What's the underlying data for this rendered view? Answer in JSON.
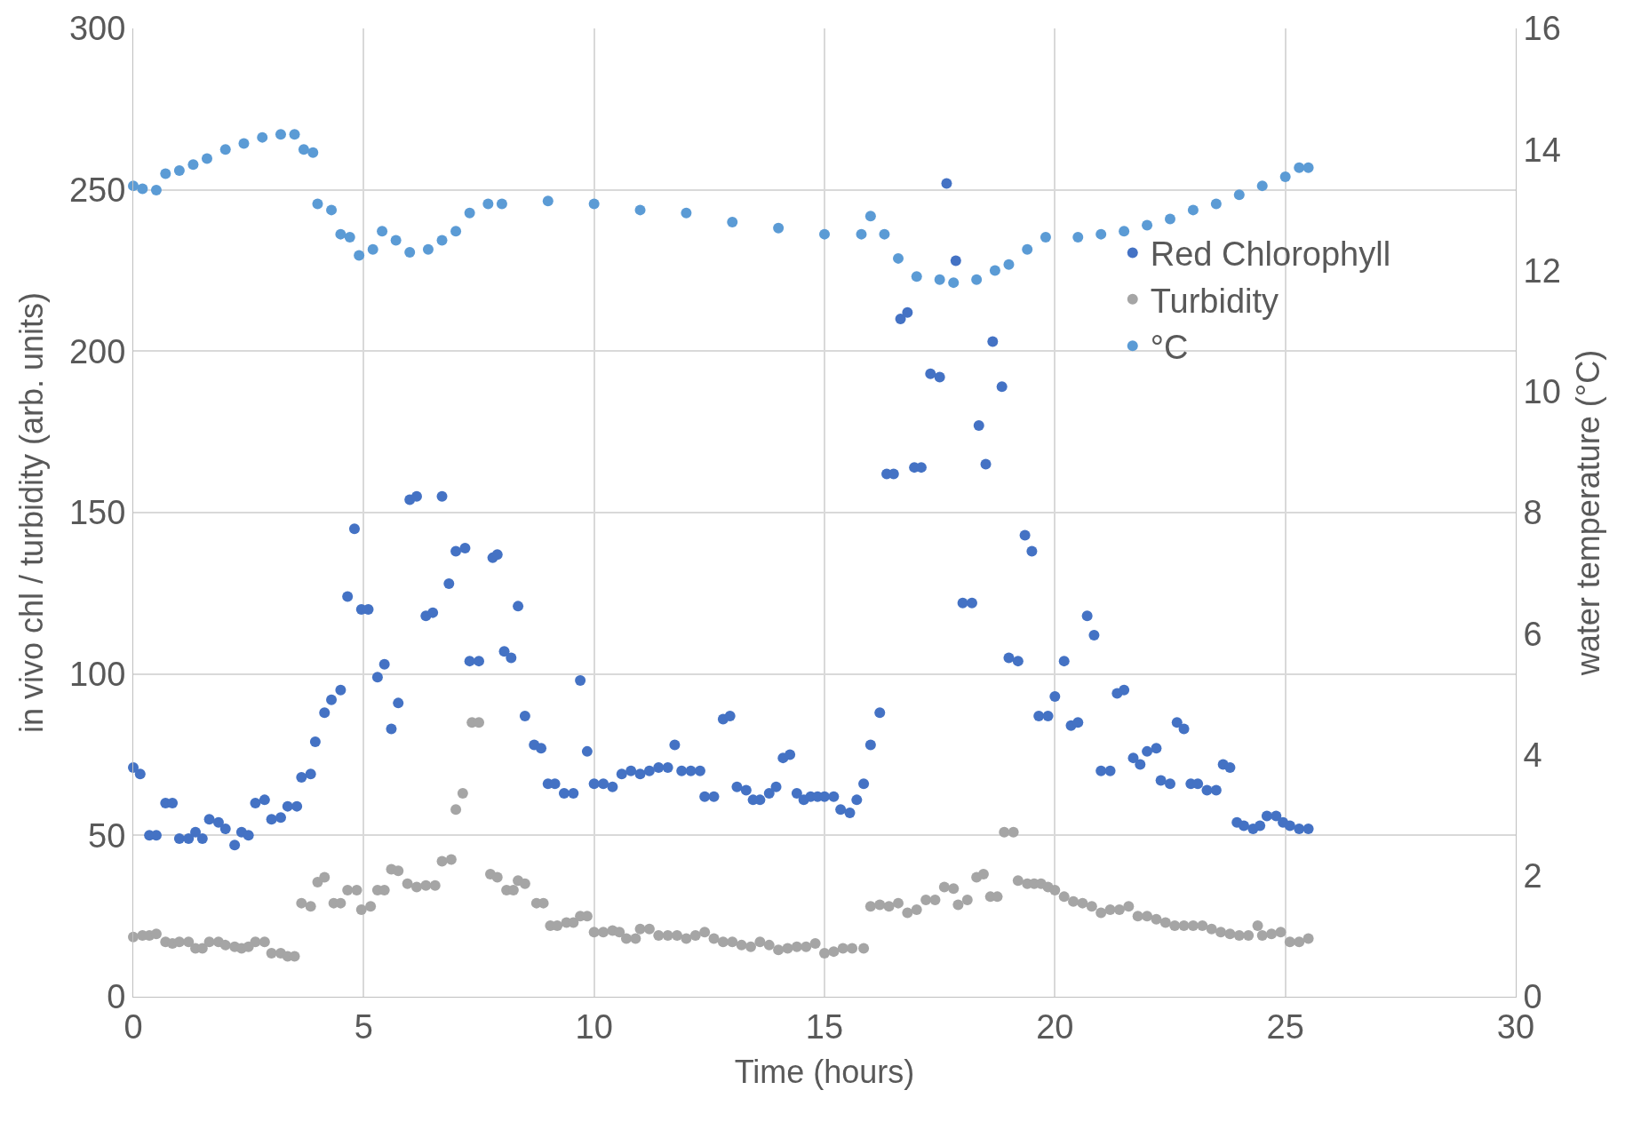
{
  "chart_data": {
    "type": "scatter",
    "xlabel": "Time (hours)",
    "ylabel": "in vivo chl / turbidity (arb. units)",
    "y2label": "water temperature (°C)",
    "xlim": [
      0,
      30
    ],
    "xticks": [
      0,
      5,
      10,
      15,
      20,
      25,
      30
    ],
    "ylim": [
      0,
      300
    ],
    "yticks": [
      0,
      50,
      100,
      150,
      200,
      250,
      300
    ],
    "y2lim": [
      0,
      16
    ],
    "y2ticks": [
      0,
      2,
      4,
      6,
      8,
      10,
      12,
      14,
      16
    ],
    "grid": true,
    "legend": "right",
    "marker": "circle",
    "series": [
      {
        "name": "Red Chlorophyll",
        "color": "#4472c4",
        "x": [
          0,
          0.15,
          0.35,
          0.5,
          0.7,
          0.85,
          1.0,
          1.2,
          1.35,
          1.5,
          1.65,
          1.85,
          2.0,
          2.2,
          2.35,
          2.5,
          2.65,
          2.85,
          3.0,
          3.2,
          3.35,
          3.55,
          3.65,
          3.85,
          3.95,
          4.15,
          4.3,
          4.5,
          4.65,
          4.8,
          4.95,
          5.1,
          5.3,
          5.45,
          5.6,
          5.75,
          6.0,
          6.15,
          6.35,
          6.5,
          6.7,
          6.85,
          7.0,
          7.2,
          7.3,
          7.5,
          7.8,
          7.9,
          8.05,
          8.2,
          8.35,
          8.5,
          8.7,
          8.85,
          9.0,
          9.15,
          9.35,
          9.55,
          9.7,
          9.85,
          10.0,
          10.2,
          10.4,
          10.6,
          10.8,
          11.0,
          11.2,
          11.4,
          11.6,
          11.75,
          11.9,
          12.1,
          12.3,
          12.4,
          12.6,
          12.8,
          12.95,
          13.1,
          13.3,
          13.45,
          13.6,
          13.8,
          13.95,
          14.1,
          14.25,
          14.4,
          14.55,
          14.7,
          14.85,
          15.0,
          15.2,
          15.35,
          15.55,
          15.7,
          15.85,
          16.0,
          16.2,
          16.35,
          16.5,
          16.65,
          16.8,
          16.95,
          17.1,
          17.3,
          17.5,
          17.65,
          17.85,
          18.0,
          18.2,
          18.35,
          18.5,
          18.65,
          18.85,
          19.0,
          19.2,
          19.35,
          19.5,
          19.65,
          19.85,
          20.0,
          20.2,
          20.35,
          20.5,
          20.7,
          20.85,
          21.0,
          21.2,
          21.35,
          21.5,
          21.7,
          21.85,
          22.0,
          22.2,
          22.3,
          22.5,
          22.65,
          22.8,
          22.95,
          23.1,
          23.3,
          23.5,
          23.65,
          23.8,
          23.95,
          24.1,
          24.3,
          24.45,
          24.6,
          24.8,
          24.95,
          25.1,
          25.3,
          25.5
        ],
        "values": [
          71,
          69,
          50,
          50,
          60,
          60,
          49,
          49,
          51,
          49,
          55,
          54,
          52,
          47,
          51,
          50,
          60,
          61,
          55,
          55.5,
          59,
          59,
          68,
          69,
          79,
          88,
          92,
          95,
          124,
          145,
          120,
          120,
          99,
          103,
          83,
          91,
          154,
          155,
          118,
          119,
          155,
          128,
          138,
          139,
          104,
          104,
          136,
          137,
          107,
          105,
          121,
          87,
          78,
          77,
          66,
          66,
          63,
          63,
          98,
          76,
          66,
          66,
          65,
          69,
          70,
          69,
          70,
          71,
          71,
          78,
          70,
          70,
          70,
          62,
          62,
          86,
          87,
          65,
          64,
          61,
          61,
          63,
          65,
          74,
          75,
          63,
          61,
          62,
          62,
          62,
          62,
          58,
          57,
          61,
          66,
          78,
          88,
          162,
          162,
          210,
          212,
          164,
          164,
          193,
          192,
          252,
          228,
          122,
          122,
          177,
          165,
          203,
          189,
          105,
          104,
          143,
          138,
          87,
          87,
          93,
          104,
          84,
          85,
          118,
          112,
          70,
          70,
          94,
          95,
          74,
          72,
          76,
          77,
          67,
          66,
          85,
          83,
          66,
          66,
          64,
          64,
          72,
          71,
          54,
          53,
          52,
          53,
          56,
          56,
          54,
          53,
          52,
          52
        ]
      },
      {
        "name": "Turbidity",
        "color": "#a5a5a5",
        "x": [
          0,
          0.2,
          0.35,
          0.5,
          0.7,
          0.85,
          1.0,
          1.2,
          1.35,
          1.5,
          1.65,
          1.85,
          2.0,
          2.2,
          2.35,
          2.5,
          2.65,
          2.85,
          3.0,
          3.2,
          3.35,
          3.5,
          3.65,
          3.85,
          4.0,
          4.15,
          4.35,
          4.5,
          4.65,
          4.85,
          4.95,
          5.15,
          5.3,
          5.45,
          5.6,
          5.75,
          5.95,
          6.15,
          6.35,
          6.55,
          6.7,
          6.9,
          7.0,
          7.15,
          7.35,
          7.5,
          7.75,
          7.9,
          8.1,
          8.25,
          8.35,
          8.5,
          8.75,
          8.9,
          9.05,
          9.2,
          9.4,
          9.55,
          9.7,
          9.85,
          10.0,
          10.2,
          10.4,
          10.55,
          10.7,
          10.9,
          11.0,
          11.2,
          11.4,
          11.6,
          11.8,
          12.0,
          12.2,
          12.4,
          12.6,
          12.8,
          13.0,
          13.2,
          13.4,
          13.6,
          13.8,
          14.0,
          14.2,
          14.4,
          14.6,
          14.8,
          15.0,
          15.2,
          15.4,
          15.6,
          15.85,
          16.0,
          16.2,
          16.4,
          16.6,
          16.8,
          17.0,
          17.2,
          17.4,
          17.6,
          17.8,
          17.9,
          18.1,
          18.3,
          18.45,
          18.6,
          18.75,
          18.9,
          19.1,
          19.2,
          19.4,
          19.55,
          19.7,
          19.85,
          20.0,
          20.2,
          20.4,
          20.6,
          20.8,
          21.0,
          21.2,
          21.4,
          21.6,
          21.8,
          22.0,
          22.2,
          22.4,
          22.6,
          22.8,
          23.0,
          23.2,
          23.4,
          23.6,
          23.8,
          24.0,
          24.2,
          24.4,
          24.5,
          24.7,
          24.9,
          25.1,
          25.3,
          25.5
        ],
        "values": [
          18.5,
          19,
          19,
          19.5,
          17,
          16.5,
          17,
          17,
          15,
          15,
          17,
          17,
          16,
          15.5,
          15,
          15.5,
          17,
          17,
          13.5,
          13.5,
          12.5,
          12.5,
          29,
          28,
          35.5,
          37,
          29,
          29,
          33,
          33,
          27,
          28,
          33,
          33,
          39.5,
          39,
          35,
          34,
          34.5,
          34.5,
          42,
          42.5,
          58,
          63,
          85,
          85,
          38,
          37,
          33,
          33,
          36,
          35,
          29,
          29,
          22,
          22,
          23,
          23,
          25,
          25,
          20,
          20,
          20.5,
          20,
          18,
          18,
          21,
          21,
          19,
          19,
          19,
          18,
          19,
          20,
          18,
          17,
          17,
          16,
          15.5,
          17,
          16,
          14.5,
          15,
          15.5,
          15.5,
          16.5,
          13.5,
          14,
          15,
          15,
          15,
          28,
          28.5,
          28,
          29,
          26,
          27,
          30,
          30,
          34,
          33.5,
          28.5,
          30,
          37,
          38,
          31,
          31,
          51,
          51,
          36,
          35,
          35,
          35,
          34,
          33,
          31,
          29.5,
          29,
          28,
          26,
          27,
          27,
          28,
          25,
          25,
          24,
          23,
          22,
          22,
          22,
          22,
          21,
          20,
          19.5,
          19,
          19,
          22,
          19,
          19.5,
          20,
          17,
          17,
          18
        ]
      },
      {
        "name": "°C",
        "color": "#5b9bd5",
        "axis": "y2",
        "x": [
          0,
          0.2,
          0.5,
          0.7,
          1.0,
          1.3,
          1.6,
          2.0,
          2.4,
          2.8,
          3.2,
          3.5,
          3.7,
          3.9,
          4.0,
          4.3,
          4.5,
          4.7,
          4.9,
          5.2,
          5.4,
          5.7,
          6.0,
          6.4,
          6.7,
          7.0,
          7.3,
          7.7,
          8.0,
          9.0,
          10.0,
          11.0,
          12.0,
          13.0,
          14.0,
          15.0,
          15.8,
          16.0,
          16.3,
          16.6,
          17.0,
          17.5,
          17.8,
          18.3,
          18.7,
          19.0,
          19.4,
          19.8,
          20.5,
          21.0,
          21.5,
          22.0,
          22.5,
          23.0,
          23.5,
          24.0,
          24.5,
          25.0,
          25.3,
          25.5
        ],
        "values": [
          13.4,
          13.35,
          13.33,
          13.6,
          13.65,
          13.75,
          13.85,
          14.0,
          14.1,
          14.2,
          14.25,
          14.25,
          14.0,
          13.95,
          13.1,
          13.0,
          12.6,
          12.55,
          12.25,
          12.35,
          12.65,
          12.5,
          12.3,
          12.35,
          12.5,
          12.65,
          12.95,
          13.1,
          13.1,
          13.15,
          13.1,
          13.0,
          12.95,
          12.8,
          12.7,
          12.6,
          12.6,
          12.9,
          12.6,
          12.2,
          11.9,
          11.85,
          11.8,
          11.85,
          12.0,
          12.1,
          12.35,
          12.55,
          12.55,
          12.6,
          12.65,
          12.75,
          12.85,
          13.0,
          13.1,
          13.25,
          13.4,
          13.55,
          13.7,
          13.7
        ]
      }
    ]
  }
}
